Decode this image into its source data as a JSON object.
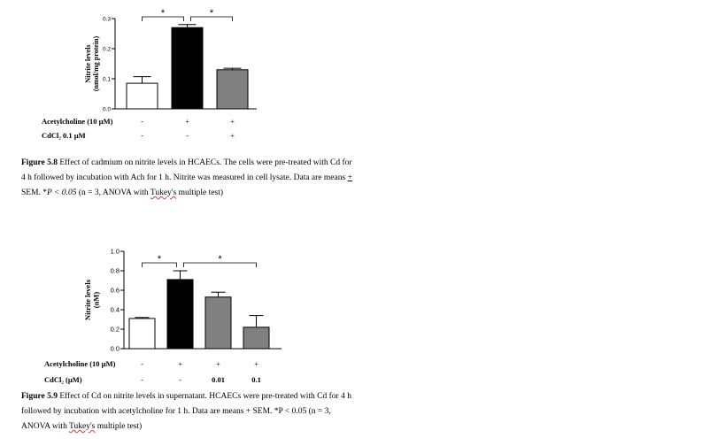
{
  "chart_data": [
    {
      "type": "bar",
      "title": "",
      "ylabel_line1": "Nitrite levels",
      "ylabel_line2": "(nmol/mg protein)",
      "ylim": [
        0,
        0.3
      ],
      "yticks": [
        "0.0",
        "0.1",
        "0.2",
        "0.3"
      ],
      "ytick_values": [
        0,
        0.1,
        0.2,
        0.3
      ],
      "values": [
        0.085,
        0.27,
        0.13
      ],
      "errors": [
        0.022,
        0.01,
        0.005
      ],
      "colors": [
        "#ffffff",
        "#000000",
        "#808080"
      ],
      "conditions": [
        {
          "label": "Acetylcholine (10 µM)",
          "values": [
            "-",
            "+",
            "+"
          ]
        },
        {
          "label": "CdCl₂ 0.1 µM",
          "values": [
            "-",
            "-",
            "+"
          ]
        }
      ],
      "significance": [
        {
          "from": 0,
          "to": 1,
          "label": "*"
        },
        {
          "from": 1,
          "to": 2,
          "label": "*"
        }
      ],
      "grid": false
    },
    {
      "type": "bar",
      "title": "",
      "ylabel_line1": "Nitrite levels",
      "ylabel_line2": "(nM)",
      "ylim": [
        0,
        1.0
      ],
      "yticks": [
        "0.0",
        "0.2",
        "0.4",
        "0.6",
        "0.8",
        "1.0"
      ],
      "ytick_values": [
        0,
        0.2,
        0.4,
        0.6,
        0.8,
        1.0
      ],
      "values": [
        0.31,
        0.71,
        0.53,
        0.22
      ],
      "errors": [
        0.01,
        0.09,
        0.05,
        0.12
      ],
      "colors": [
        "#ffffff",
        "#000000",
        "#808080",
        "#808080"
      ],
      "conditions": [
        {
          "label": "Acetylcholine (10 µM)",
          "values": [
            "-",
            "+",
            "+",
            "+"
          ]
        },
        {
          "label": "CdCl₂ (µM)",
          "values": [
            "-",
            "-",
            "0.01",
            "0.1"
          ]
        }
      ],
      "significance": [
        {
          "from": 0,
          "to": 1,
          "label": "*"
        },
        {
          "from": 1,
          "to": 3,
          "label": "*"
        }
      ],
      "grid": false
    }
  ],
  "captions": [
    {
      "label": "Figure 5.8",
      "text_a": " Effect of cadmium on nitrite levels in HCAECs. The cells were pre-treated with Cd for 4 h followed by incubation with Ach for 1 h. Nitrite was measured in cell lysate. Data are means ",
      "text_b": "+",
      "text_c": " SEM. *",
      "text_d": "P < 0.05",
      "text_e": " (n = 3, ANOVA with ",
      "text_f": "Tukey's",
      "text_g": " multiple test)"
    },
    {
      "label": "Figure 5.9",
      "text_a": " Effect of Cd on nitrite levels in supernatant. HCAECs were pre-treated with Cd for 4 h followed by incubation with acetylcholine for 1 h. Data are means + SEM. *P < 0.05 (n = 3, ANOVA with ",
      "text_f": "Tukey's",
      "text_g": " multiple test)"
    }
  ]
}
